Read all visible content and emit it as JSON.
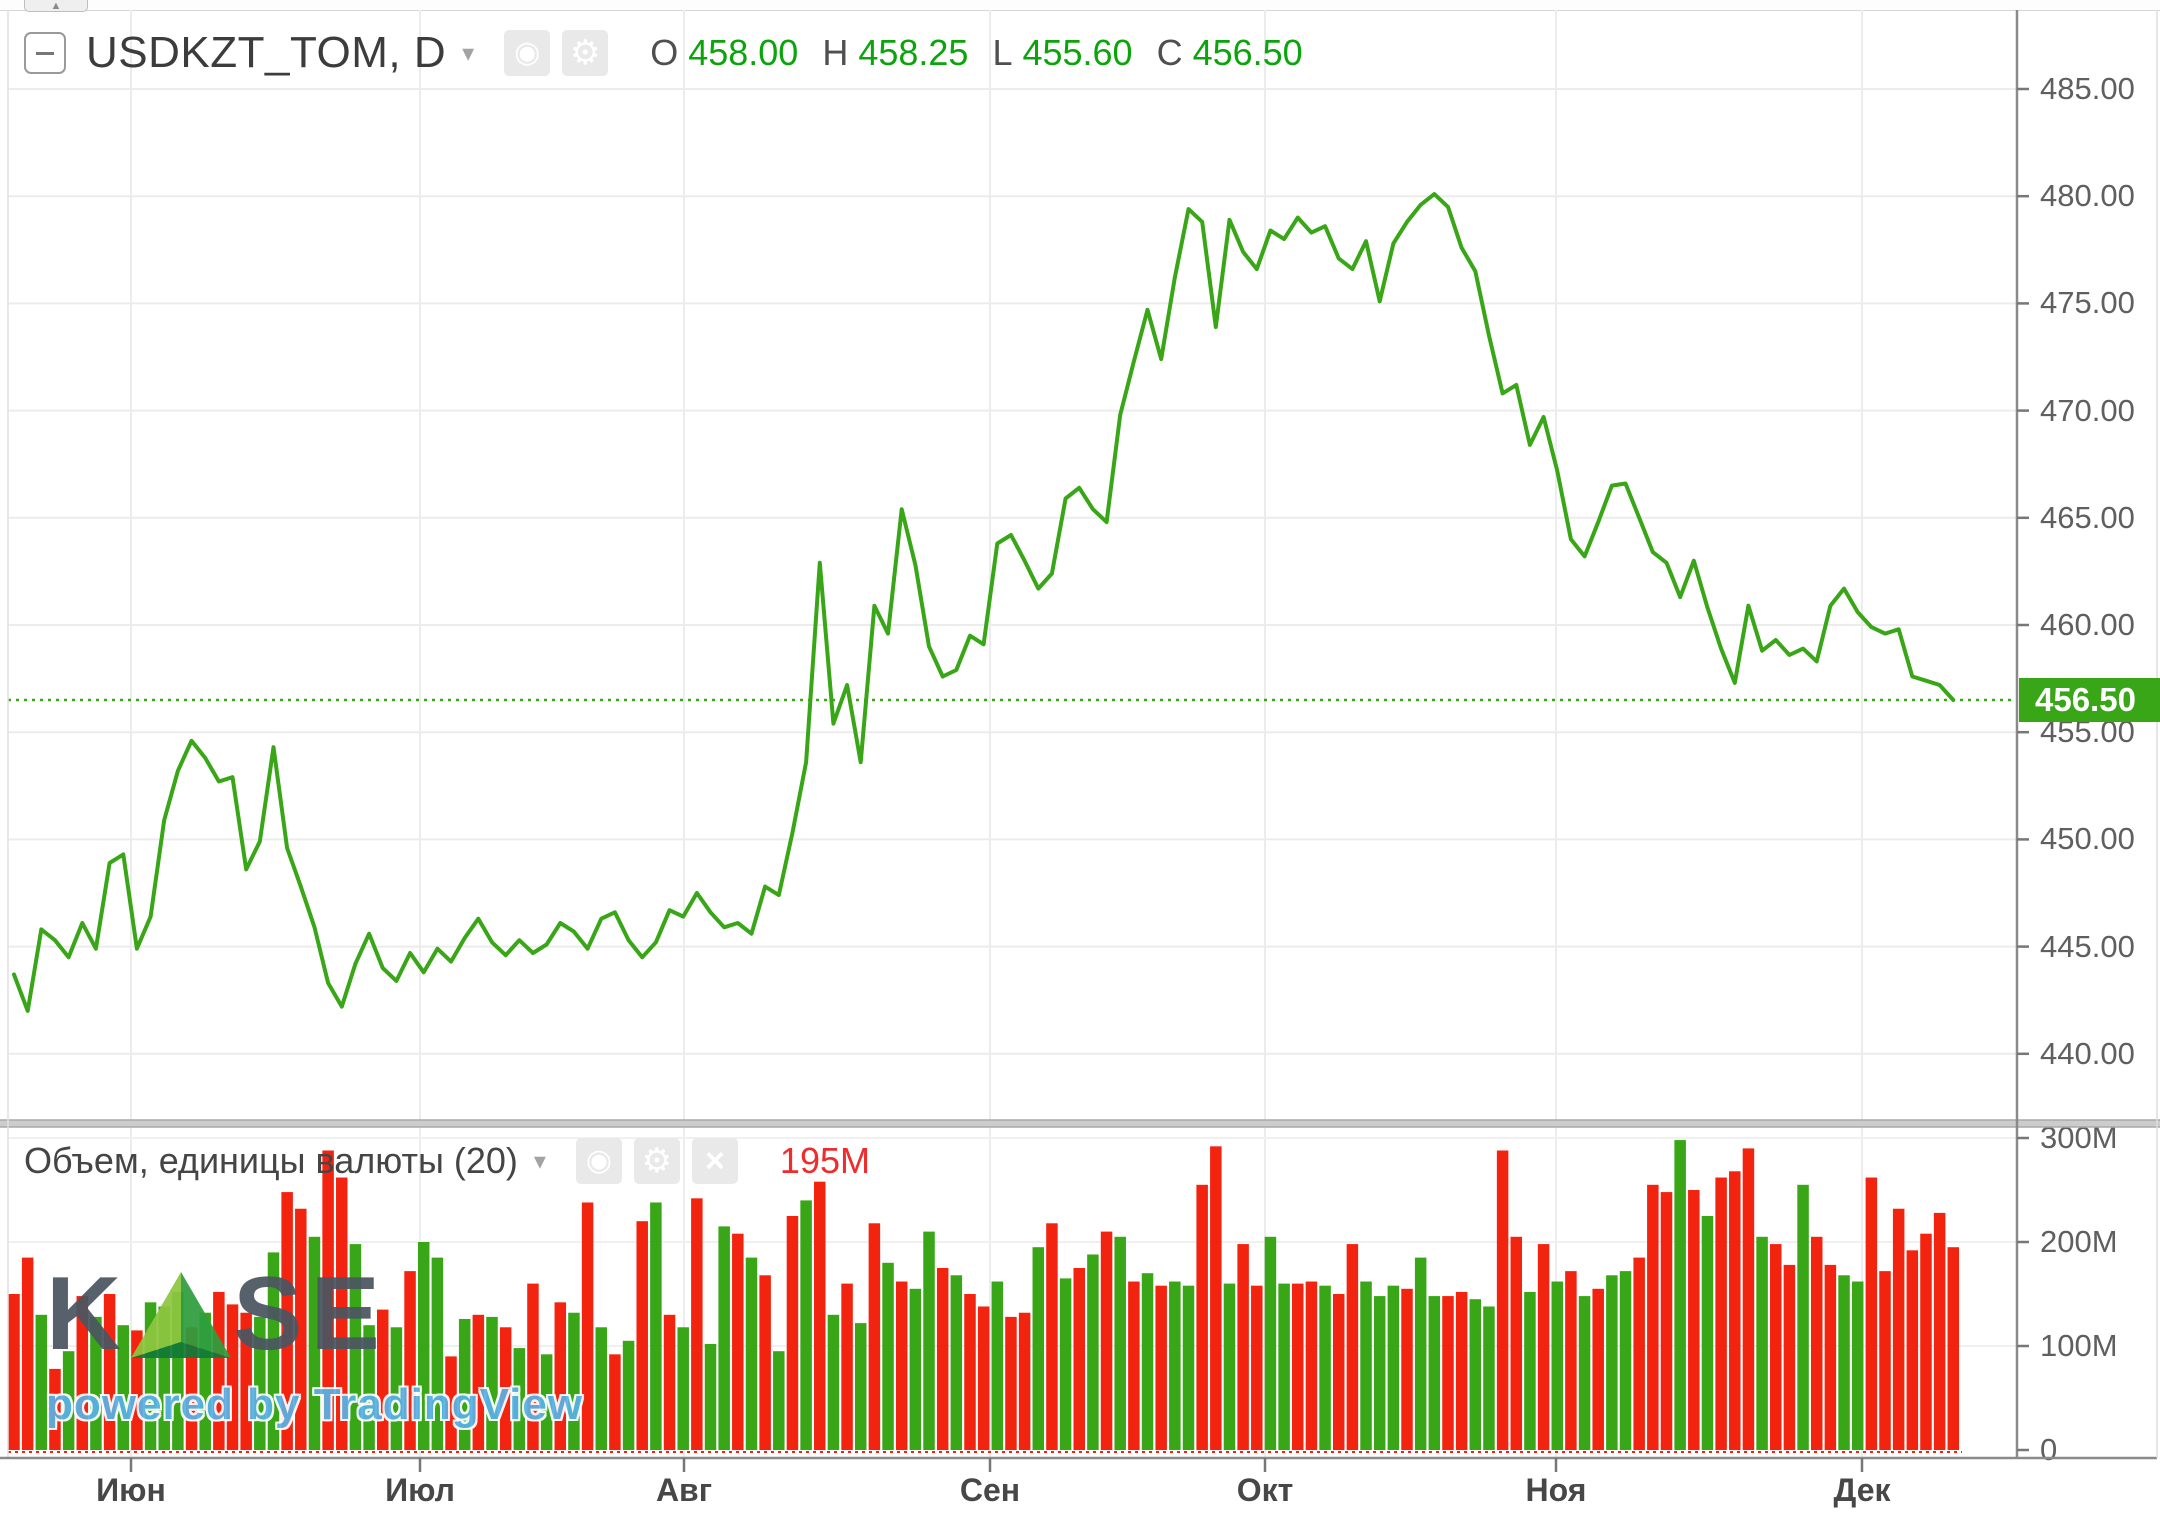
{
  "header": {
    "symbol_title": "USDKZT_TOM, D",
    "ohlc": {
      "o_label": "O",
      "o_value": "458.00",
      "h_label": "H",
      "h_value": "458.25",
      "l_label": "L",
      "l_value": "455.60",
      "c_label": "C",
      "c_value": "456.50"
    }
  },
  "volume_header": {
    "title": "Объем, единицы валюты (20)",
    "value": "195M"
  },
  "icons": {
    "dropdown": "▾",
    "eye": "◉",
    "gear": "⚙",
    "close": "×",
    "tab_arrow": "▲"
  },
  "watermark": {
    "left": "K",
    "right": "SE",
    "powered": "powered by TradingView"
  },
  "price_scale": {
    "tick_labels": [
      "485.00",
      "480.00",
      "475.00",
      "470.00",
      "465.00",
      "460.00",
      "455.00",
      "450.00",
      "445.00",
      "440.00"
    ],
    "tick_values": [
      485,
      480,
      475,
      470,
      465,
      460,
      455,
      450,
      445,
      440
    ],
    "last_badge": "456.50"
  },
  "volume_scale": {
    "tick_labels": [
      "300M",
      "200M",
      "100M",
      "0"
    ],
    "tick_values": [
      300,
      200,
      100,
      0
    ]
  },
  "colors": {
    "up_green": "#38a617",
    "down_red": "#f3240f",
    "value_green": "#0ba50b",
    "value_red": "#f12b2b",
    "badge_green": "#38a617",
    "grid": "#ececec",
    "vol_grid": "#f0f0f0",
    "axis_border": "#8a8a8a"
  },
  "chart_data": {
    "type": "line",
    "title": "USDKZT_TOM, D",
    "x_axis": {
      "tick_labels": [
        "Июн",
        "Июл",
        "Авг",
        "Сен",
        "Окт",
        "Ноя",
        "Дек"
      ]
    },
    "price_axis": {
      "ylim": [
        438.5,
        488.5
      ],
      "ticks": [
        440,
        445,
        450,
        455,
        460,
        465,
        470,
        475,
        480,
        485
      ]
    },
    "volume_axis": {
      "ylim_millions": [
        0,
        300
      ],
      "ticks_millions": [
        0,
        100,
        200,
        300
      ]
    },
    "ohlc_last": {
      "open": 458.0,
      "high": 458.25,
      "low": 455.6,
      "close": 456.5
    },
    "last_price": 456.5,
    "last_volume_label": "195M",
    "volume_ma_length": 20,
    "price_series": [
      443.7,
      442.0,
      445.8,
      445.3,
      444.5,
      446.1,
      444.9,
      448.9,
      449.3,
      444.9,
      446.4,
      450.9,
      453.2,
      454.6,
      453.8,
      452.7,
      452.9,
      448.6,
      449.9,
      454.3,
      449.6,
      447.8,
      445.9,
      443.3,
      442.2,
      444.2,
      445.6,
      444.0,
      443.4,
      444.7,
      443.8,
      444.9,
      444.3,
      445.4,
      446.3,
      445.2,
      444.6,
      445.3,
      444.7,
      445.1,
      446.1,
      445.7,
      444.9,
      446.3,
      446.6,
      445.3,
      444.5,
      445.2,
      446.7,
      446.4,
      447.5,
      446.6,
      445.9,
      446.1,
      445.6,
      447.8,
      447.4,
      450.3,
      453.6,
      462.9,
      455.4,
      457.2,
      453.6,
      460.9,
      459.6,
      465.4,
      462.8,
      459.0,
      457.6,
      457.9,
      459.5,
      459.1,
      463.8,
      464.2,
      463.0,
      461.7,
      462.4,
      465.9,
      466.4,
      465.4,
      464.8,
      469.8,
      472.3,
      474.7,
      472.4,
      476.2,
      479.4,
      478.8,
      473.9,
      478.9,
      477.4,
      476.6,
      478.4,
      478.0,
      479.0,
      478.3,
      478.6,
      477.1,
      476.6,
      477.9,
      475.1,
      477.8,
      478.8,
      479.6,
      480.1,
      479.5,
      477.6,
      476.5,
      473.5,
      470.8,
      471.2,
      468.4,
      469.7,
      467.2,
      464.0,
      463.2,
      464.8,
      466.5,
      466.6,
      465.0,
      463.4,
      462.9,
      461.3,
      463.0,
      460.8,
      458.9,
      457.3,
      460.9,
      458.8,
      459.3,
      458.6,
      458.9,
      458.3,
      460.9,
      461.7,
      460.6,
      459.9,
      459.6,
      459.8,
      457.6,
      457.4,
      457.2,
      456.5
    ],
    "volume_series": {
      "unit": "millions",
      "values": [
        150,
        185,
        130,
        78,
        95,
        148,
        128,
        150,
        120,
        115,
        142,
        138,
        152,
        118,
        132,
        152,
        140,
        132,
        128,
        190,
        248,
        232,
        205,
        288,
        262,
        198,
        120,
        135,
        118,
        172,
        200,
        185,
        90,
        126,
        130,
        128,
        118,
        98,
        160,
        92,
        142,
        132,
        238,
        118,
        92,
        105,
        220,
        238,
        130,
        118,
        242,
        102,
        215,
        208,
        185,
        168,
        95,
        225,
        240,
        258,
        130,
        160,
        122,
        218,
        180,
        162,
        155,
        210,
        175,
        168,
        150,
        138,
        162,
        128,
        132,
        195,
        218,
        165,
        175,
        188,
        210,
        205,
        162,
        170,
        158,
        162,
        158,
        255,
        292,
        160,
        198,
        158,
        205,
        160,
        160,
        162,
        158,
        150,
        198,
        162,
        148,
        158,
        155,
        185,
        148,
        148,
        152,
        145,
        138,
        288,
        205,
        152,
        198,
        162,
        172,
        148,
        155,
        168,
        172,
        185,
        255,
        248,
        298,
        250,
        225,
        262,
        268,
        290,
        205,
        198,
        178,
        255,
        205,
        178,
        168,
        162,
        262,
        172,
        232,
        192,
        208,
        228,
        195
      ],
      "colors": [
        "r",
        "r",
        "g",
        "r",
        "g",
        "r",
        "g",
        "r",
        "g",
        "r",
        "g",
        "g",
        "g",
        "r",
        "g",
        "r",
        "r",
        "r",
        "g",
        "g",
        "r",
        "r",
        "g",
        "r",
        "r",
        "g",
        "g",
        "r",
        "g",
        "r",
        "g",
        "g",
        "r",
        "g",
        "r",
        "g",
        "r",
        "g",
        "r",
        "g",
        "r",
        "g",
        "r",
        "g",
        "r",
        "g",
        "r",
        "g",
        "r",
        "g",
        "r",
        "g",
        "g",
        "r",
        "g",
        "r",
        "g",
        "r",
        "g",
        "r",
        "g",
        "r",
        "g",
        "r",
        "g",
        "r",
        "g",
        "g",
        "r",
        "g",
        "r",
        "r",
        "g",
        "r",
        "r",
        "g",
        "r",
        "g",
        "r",
        "g",
        "r",
        "g",
        "r",
        "g",
        "r",
        "g",
        "g",
        "r",
        "r",
        "g",
        "r",
        "r",
        "g",
        "g",
        "r",
        "r",
        "g",
        "r",
        "r",
        "g",
        "g",
        "g",
        "r",
        "g",
        "g",
        "r",
        "r",
        "g",
        "g",
        "r",
        "r",
        "g",
        "r",
        "g",
        "r",
        "g",
        "r",
        "g",
        "g",
        "r",
        "r",
        "r",
        "g",
        "r",
        "g",
        "r",
        "r",
        "r",
        "g",
        "r",
        "r",
        "g",
        "r",
        "r",
        "g",
        "g",
        "r",
        "r",
        "r",
        "r",
        "r",
        "r",
        "r"
      ]
    }
  }
}
